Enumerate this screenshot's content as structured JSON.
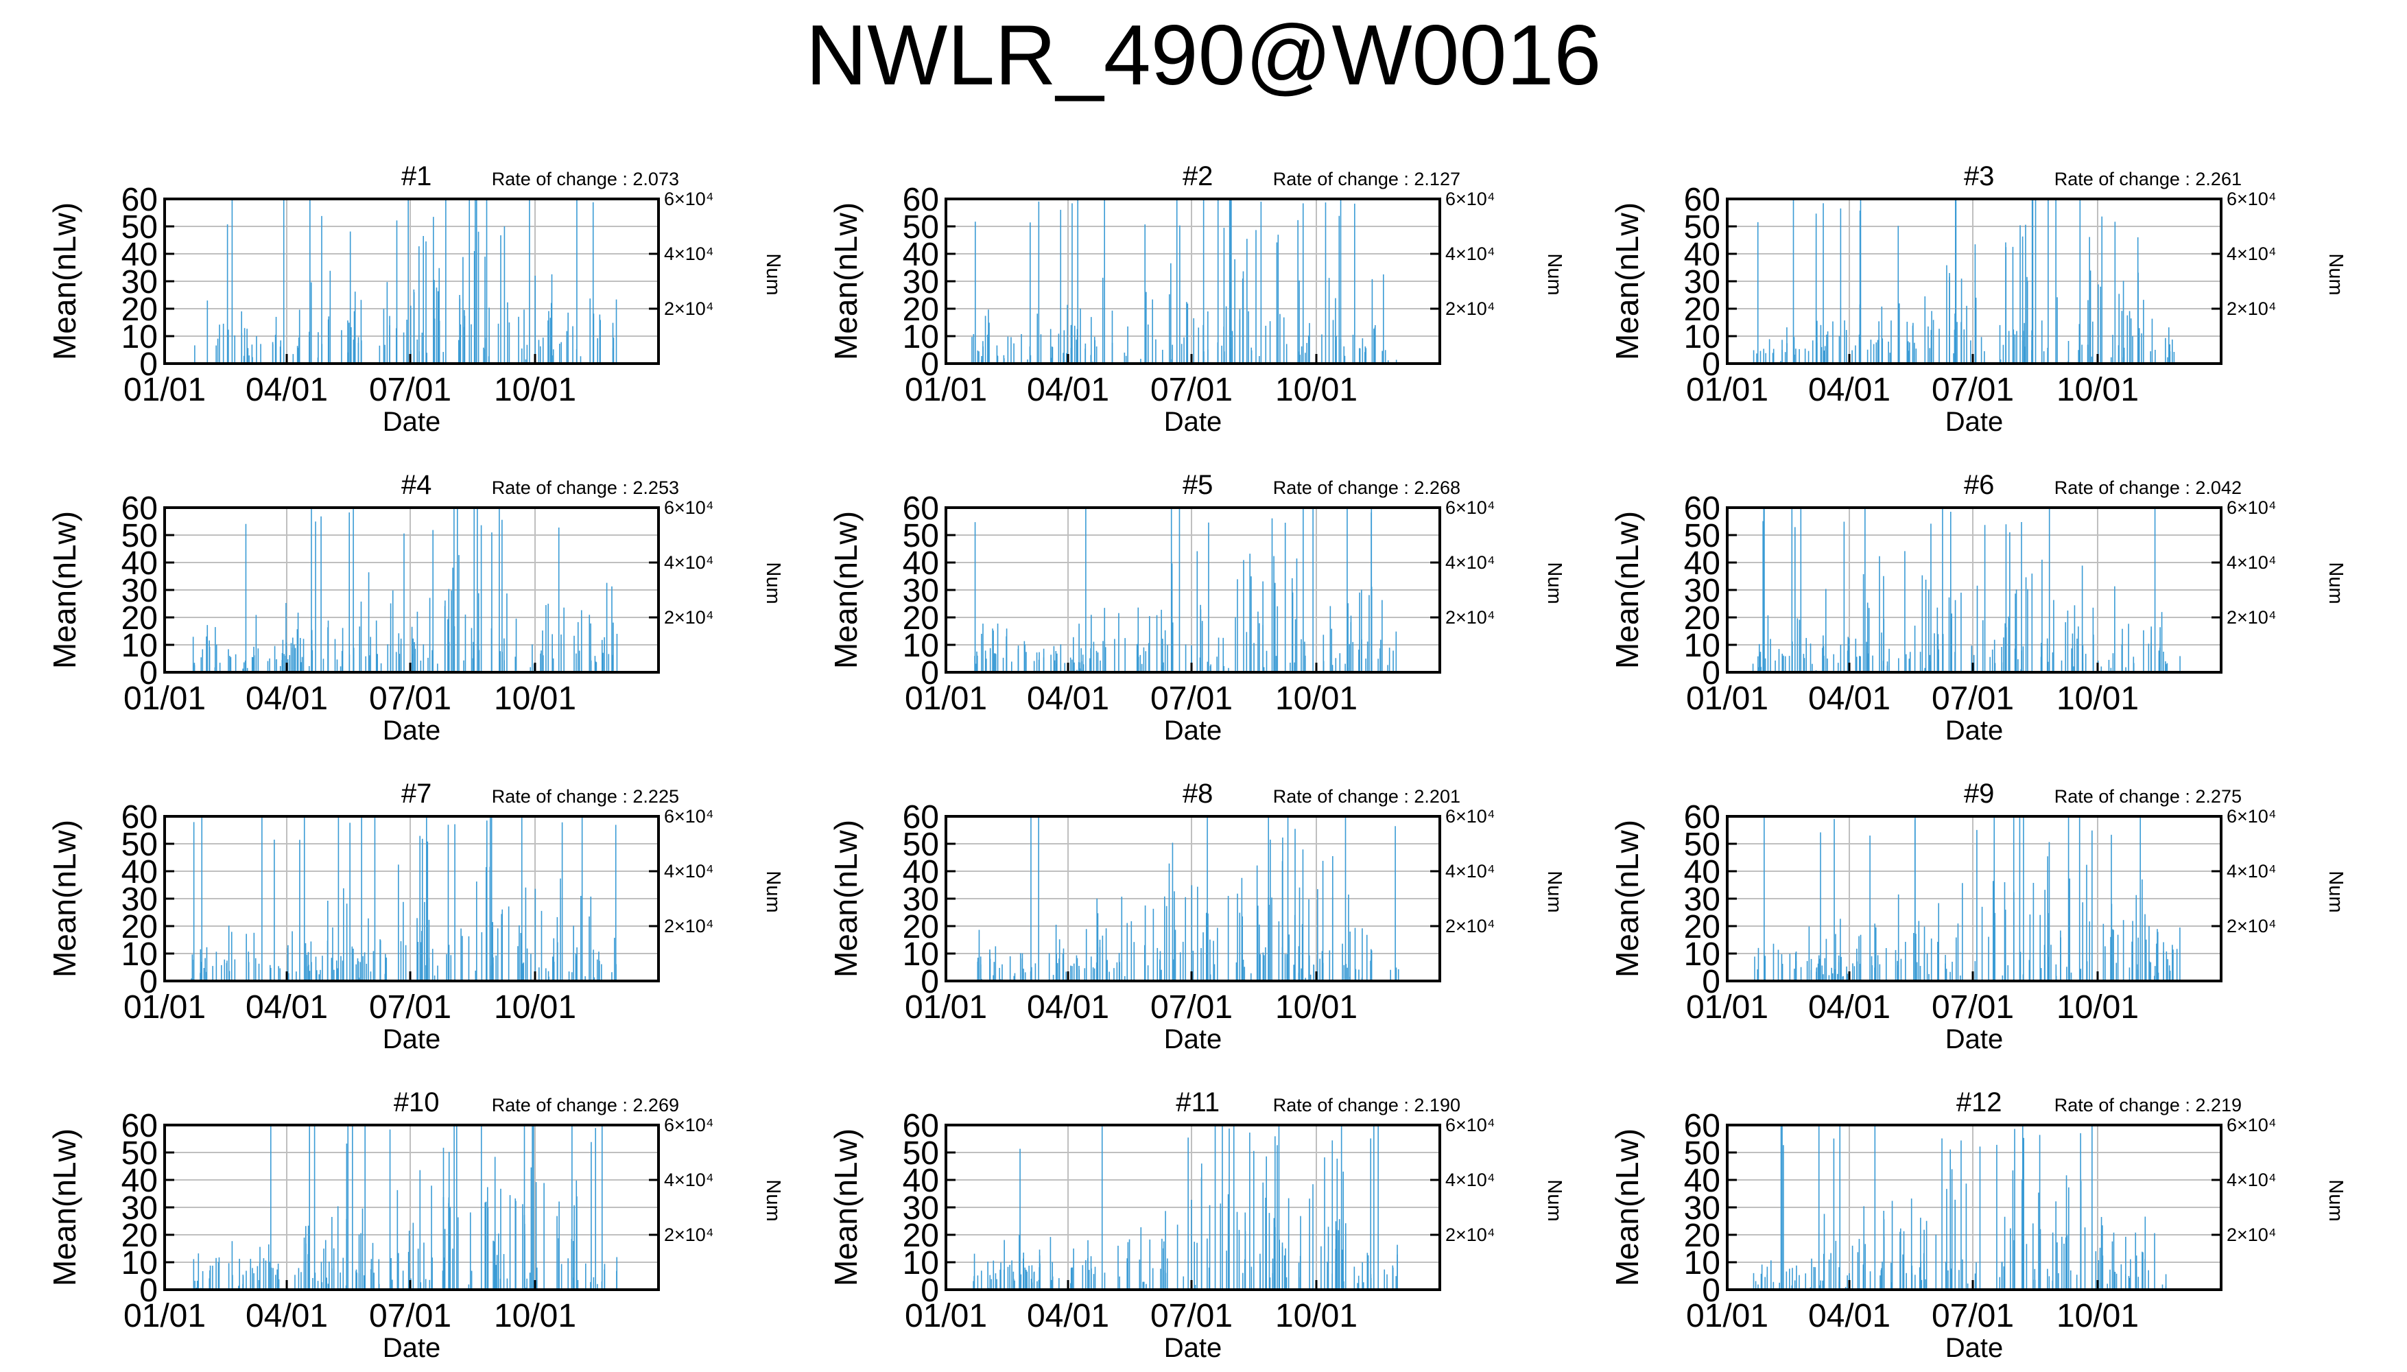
{
  "page": {
    "title": "NWLR_490@W0016"
  },
  "style": {
    "bar_color": "#3a9bd5",
    "grid_color": "#bfbfbf",
    "axis_color": "#000000"
  },
  "chart_data": [
    {
      "type": "bar",
      "panel_title": "#1",
      "rate_label": "Rate of change : 2.073",
      "seed": 11,
      "peak_day": 200,
      "n_bars": 150,
      "left_axis_ticks": [
        "0",
        "10",
        "20",
        "30",
        "40",
        "50",
        "60"
      ],
      "right_axis_ticks": [
        "2×10⁴",
        "4×10⁴",
        "6×10⁴"
      ],
      "x_ticks": [
        "01/01",
        "04/01",
        "07/01",
        "10/01"
      ],
      "xlabel": "Date",
      "ylabel": "Mean(nLw)",
      "y2label": "Num",
      "ylim": [
        0,
        60
      ],
      "x_range_days": [
        1,
        365
      ],
      "data_range_days": [
        20,
        335
      ],
      "grid": true
    },
    {
      "type": "bar",
      "panel_title": "#2",
      "rate_label": "Rate of change : 2.127",
      "seed": 23,
      "peak_day": 215,
      "n_bars": 160,
      "left_axis_ticks": [
        "0",
        "10",
        "20",
        "30",
        "40",
        "50",
        "60"
      ],
      "right_axis_ticks": [
        "2×10⁴",
        "4×10⁴",
        "6×10⁴"
      ],
      "x_ticks": [
        "01/01",
        "04/01",
        "07/01",
        "10/01"
      ],
      "xlabel": "Date",
      "ylabel": "Mean(nLw)",
      "y2label": "Num",
      "ylim": [
        0,
        60
      ],
      "x_range_days": [
        1,
        365
      ],
      "data_range_days": [
        20,
        335
      ],
      "grid": true
    },
    {
      "type": "bar",
      "panel_title": "#3",
      "rate_label": "Rate of change : 2.261",
      "seed": 37,
      "peak_day": 240,
      "n_bars": 170,
      "left_axis_ticks": [
        "0",
        "10",
        "20",
        "30",
        "40",
        "50",
        "60"
      ],
      "right_axis_ticks": [
        "2×10⁴",
        "4×10⁴",
        "6×10⁴"
      ],
      "x_ticks": [
        "01/01",
        "04/01",
        "07/01",
        "10/01"
      ],
      "xlabel": "Date",
      "ylabel": "Mean(nLw)",
      "y2label": "Num",
      "ylim": [
        0,
        60
      ],
      "x_range_days": [
        1,
        365
      ],
      "data_range_days": [
        20,
        335
      ],
      "grid": true
    },
    {
      "type": "bar",
      "panel_title": "#4",
      "rate_label": "Rate of change : 2.253",
      "seed": 41,
      "peak_day": 235,
      "n_bars": 170,
      "left_axis_ticks": [
        "0",
        "10",
        "20",
        "30",
        "40",
        "50",
        "60"
      ],
      "right_axis_ticks": [
        "2×10⁴",
        "4×10⁴",
        "6×10⁴"
      ],
      "x_ticks": [
        "01/01",
        "04/01",
        "07/01",
        "10/01"
      ],
      "xlabel": "Date",
      "ylabel": "Mean(nLw)",
      "y2label": "Num",
      "ylim": [
        0,
        60
      ],
      "x_range_days": [
        1,
        365
      ],
      "data_range_days": [
        20,
        335
      ],
      "grid": true
    },
    {
      "type": "bar",
      "panel_title": "#5",
      "rate_label": "Rate of change : 2.268",
      "seed": 53,
      "peak_day": 230,
      "n_bars": 175,
      "left_axis_ticks": [
        "0",
        "10",
        "20",
        "30",
        "40",
        "50",
        "60"
      ],
      "right_axis_ticks": [
        "2×10⁴",
        "4×10⁴",
        "6×10⁴"
      ],
      "x_ticks": [
        "01/01",
        "04/01",
        "07/01",
        "10/01"
      ],
      "xlabel": "Date",
      "ylabel": "Mean(nLw)",
      "y2label": "Num",
      "ylim": [
        0,
        60
      ],
      "x_range_days": [
        1,
        365
      ],
      "data_range_days": [
        20,
        335
      ],
      "grid": true
    },
    {
      "type": "bar",
      "panel_title": "#6",
      "rate_label": "Rate of change : 2.042",
      "seed": 67,
      "peak_day": 190,
      "n_bars": 175,
      "left_axis_ticks": [
        "0",
        "10",
        "20",
        "30",
        "40",
        "50",
        "60"
      ],
      "right_axis_ticks": [
        "2×10⁴",
        "4×10⁴",
        "6×10⁴"
      ],
      "x_ticks": [
        "01/01",
        "04/01",
        "07/01",
        "10/01"
      ],
      "xlabel": "Date",
      "ylabel": "Mean(nLw)",
      "y2label": "Num",
      "ylim": [
        0,
        60
      ],
      "x_range_days": [
        1,
        365
      ],
      "data_range_days": [
        20,
        335
      ],
      "grid": true
    },
    {
      "type": "bar",
      "panel_title": "#7",
      "rate_label": "Rate of change : 2.225",
      "seed": 79,
      "peak_day": 225,
      "n_bars": 180,
      "left_axis_ticks": [
        "0",
        "10",
        "20",
        "30",
        "40",
        "50",
        "60"
      ],
      "right_axis_ticks": [
        "2×10⁴",
        "4×10⁴",
        "6×10⁴"
      ],
      "x_ticks": [
        "01/01",
        "04/01",
        "07/01",
        "10/01"
      ],
      "xlabel": "Date",
      "ylabel": "Mean(nLw)",
      "y2label": "Num",
      "ylim": [
        0,
        60
      ],
      "x_range_days": [
        1,
        365
      ],
      "data_range_days": [
        20,
        335
      ],
      "grid": true
    },
    {
      "type": "bar",
      "panel_title": "#8",
      "rate_label": "Rate of change : 2.201",
      "seed": 83,
      "peak_day": 220,
      "n_bars": 175,
      "left_axis_ticks": [
        "0",
        "10",
        "20",
        "30",
        "40",
        "50",
        "60"
      ],
      "right_axis_ticks": [
        "2×10⁴",
        "4×10⁴",
        "6×10⁴"
      ],
      "x_ticks": [
        "01/01",
        "04/01",
        "07/01",
        "10/01"
      ],
      "xlabel": "Date",
      "ylabel": "Mean(nLw)",
      "y2label": "Num",
      "ylim": [
        0,
        60
      ],
      "x_range_days": [
        1,
        365
      ],
      "data_range_days": [
        20,
        335
      ],
      "grid": true
    },
    {
      "type": "bar",
      "panel_title": "#9",
      "rate_label": "Rate of change : 2.275",
      "seed": 97,
      "peak_day": 245,
      "n_bars": 180,
      "left_axis_ticks": [
        "0",
        "10",
        "20",
        "30",
        "40",
        "50",
        "60"
      ],
      "right_axis_ticks": [
        "2×10⁴",
        "4×10⁴",
        "6×10⁴"
      ],
      "x_ticks": [
        "01/01",
        "04/01",
        "07/01",
        "10/01"
      ],
      "xlabel": "Date",
      "ylabel": "Mean(nLw)",
      "y2label": "Num",
      "ylim": [
        0,
        60
      ],
      "x_range_days": [
        1,
        365
      ],
      "data_range_days": [
        20,
        335
      ],
      "grid": true
    },
    {
      "type": "bar",
      "panel_title": "#10",
      "rate_label": "Rate of change : 2.269",
      "seed": 101,
      "peak_day": 235,
      "n_bars": 185,
      "left_axis_ticks": [
        "0",
        "10",
        "20",
        "30",
        "40",
        "50",
        "60"
      ],
      "right_axis_ticks": [
        "2×10⁴",
        "4×10⁴",
        "6×10⁴"
      ],
      "x_ticks": [
        "01/01",
        "04/01",
        "07/01",
        "10/01"
      ],
      "xlabel": "Date",
      "ylabel": "Mean(nLw)",
      "y2label": "Num",
      "ylim": [
        0,
        60
      ],
      "x_range_days": [
        1,
        365
      ],
      "data_range_days": [
        20,
        335
      ],
      "grid": true
    },
    {
      "type": "bar",
      "panel_title": "#11",
      "rate_label": "Rate of change : 2.190",
      "seed": 113,
      "peak_day": 230,
      "n_bars": 180,
      "left_axis_ticks": [
        "0",
        "10",
        "20",
        "30",
        "40",
        "50",
        "60"
      ],
      "right_axis_ticks": [
        "2×10⁴",
        "4×10⁴",
        "6×10⁴"
      ],
      "x_ticks": [
        "01/01",
        "04/01",
        "07/01",
        "10/01"
      ],
      "xlabel": "Date",
      "ylabel": "Mean(nLw)",
      "y2label": "Num",
      "ylim": [
        0,
        60
      ],
      "x_range_days": [
        1,
        365
      ],
      "data_range_days": [
        20,
        335
      ],
      "grid": true
    },
    {
      "type": "bar",
      "panel_title": "#12",
      "rate_label": "Rate of change : 2.219",
      "seed": 127,
      "peak_day": 200,
      "n_bars": 170,
      "left_axis_ticks": [
        "0",
        "10",
        "20",
        "30",
        "40",
        "50",
        "60"
      ],
      "right_axis_ticks": [
        "2×10⁴",
        "4×10⁴",
        "6×10⁴"
      ],
      "x_ticks": [
        "01/01",
        "04/01",
        "07/01",
        "10/01"
      ],
      "xlabel": "Date",
      "ylabel": "Mean(nLw)",
      "y2label": "Num",
      "ylim": [
        0,
        60
      ],
      "x_range_days": [
        1,
        365
      ],
      "data_range_days": [
        20,
        335
      ],
      "grid": true
    }
  ]
}
